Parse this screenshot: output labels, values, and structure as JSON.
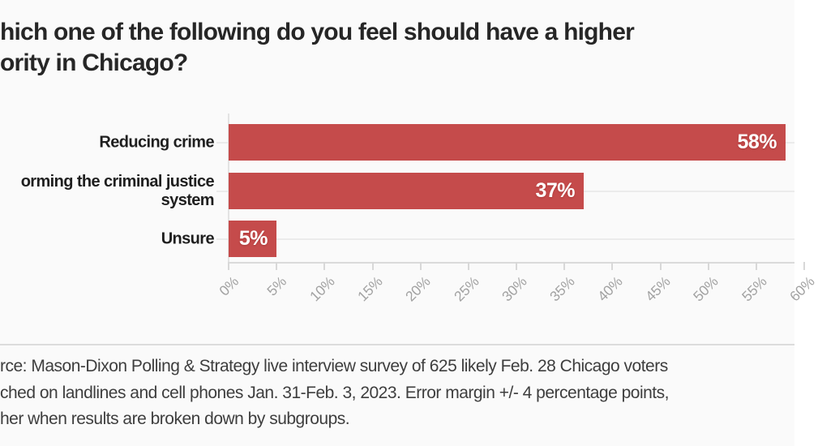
{
  "title": {
    "line1": "hich one of the following do you feel should have a higher",
    "line2": "ority in Chicago?"
  },
  "source": {
    "line1": "rce: Mason-Dixon Polling & Strategy live interview survey of 625 likely Feb. 28 Chicago voters",
    "line2": "ched on landlines and cell phones Jan. 31-Feb. 3, 2023. Error margin +/- 4 percentage points,",
    "line3": "her when results are broken down by subgroups."
  },
  "colors": {
    "bar": "#c54b4b",
    "background": "#fafafa",
    "title_text": "#262626",
    "category_text": "#1f1f1f",
    "value_text": "#ffffff",
    "axis_tick_text": "#a2a2a2",
    "grid_line": "#ebebeb",
    "source_text": "#3e3e3e"
  },
  "chart_data": {
    "type": "bar",
    "orientation": "horizontal",
    "title_lines": [
      "hich one of the following do you feel should have a higher",
      "ority in Chicago?"
    ],
    "categories": [
      "Reducing crime",
      "orming the criminal justice system",
      "Unsure"
    ],
    "category_display_lines": [
      [
        "Reducing crime"
      ],
      [
        "orming the criminal justice",
        "system"
      ],
      [
        "Unsure"
      ]
    ],
    "values": [
      58,
      37,
      5
    ],
    "value_labels": [
      "58%",
      "37%",
      "5%"
    ],
    "xlabel": "",
    "ylabel": "",
    "xlim": [
      0,
      60
    ],
    "x_tick_values": [
      0,
      5,
      10,
      15,
      20,
      25,
      30,
      35,
      40,
      45,
      50,
      55,
      60
    ],
    "x_tick_labels": [
      "0%",
      "5%",
      "10%",
      "15%",
      "20%",
      "25%",
      "30%",
      "35%",
      "40%",
      "45%",
      "50%",
      "55%",
      "60%"
    ],
    "legend": "none",
    "grid": "row-lines",
    "bar_color": "#c54b4b"
  }
}
